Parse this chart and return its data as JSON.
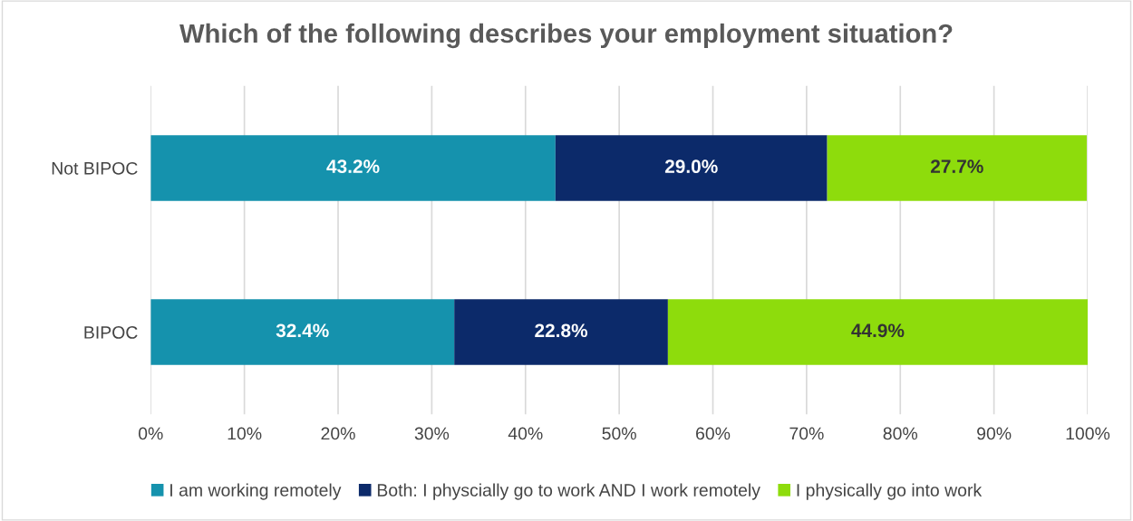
{
  "chart_data": {
    "type": "bar",
    "orientation": "horizontal",
    "stacked": true,
    "title": "Which of the following describes your employment situation?",
    "categories": [
      "Not BIPOC",
      "BIPOC"
    ],
    "series": [
      {
        "name": "I am working remotely",
        "color": "#1592ad",
        "values": [
          43.2,
          32.4
        ],
        "value_labels": [
          "43.2%",
          "32.4%"
        ]
      },
      {
        "name": "Both: I physcially go to work AND I work remotely",
        "color": "#0c2a6a",
        "values": [
          29.0,
          22.8
        ],
        "value_labels": [
          "29.0%",
          "22.8%"
        ]
      },
      {
        "name": "I physically go into work",
        "color": "#8edc0c",
        "values": [
          27.7,
          44.9
        ],
        "value_labels": [
          "27.7%",
          "44.9%"
        ]
      }
    ],
    "xlim": [
      0,
      100
    ],
    "xticks": [
      {
        "value": 0,
        "label": "0%"
      },
      {
        "value": 10,
        "label": "10%"
      },
      {
        "value": 20,
        "label": "20%"
      },
      {
        "value": 30,
        "label": "30%"
      },
      {
        "value": 40,
        "label": "40%"
      },
      {
        "value": 50,
        "label": "50%"
      },
      {
        "value": 60,
        "label": "60%"
      },
      {
        "value": 70,
        "label": "70%"
      },
      {
        "value": 80,
        "label": "80%"
      },
      {
        "value": 90,
        "label": "90%"
      },
      {
        "value": 100,
        "label": "100%"
      }
    ],
    "grid": "x",
    "legend": "bottom"
  }
}
